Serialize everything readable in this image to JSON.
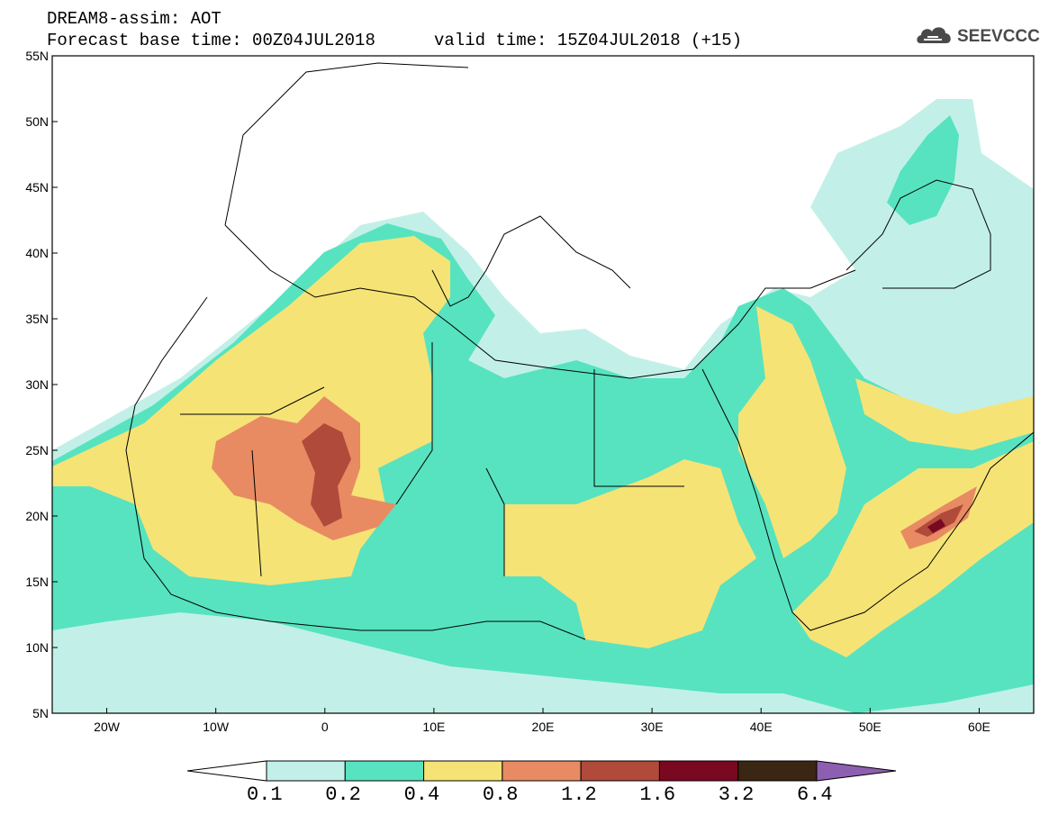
{
  "header": {
    "title": "DREAM8-assim: AOT",
    "base_time": "Forecast base time: 00Z04JUL2018",
    "valid_time": "valid time: 15Z04JUL2018 (+15)"
  },
  "logo": {
    "text": "SEEVCCC",
    "icon": "cloud-icon"
  },
  "map": {
    "lon_ticks": [
      "20W",
      "10W",
      "0",
      "10E",
      "20E",
      "30E",
      "40E",
      "50E",
      "60E"
    ],
    "lat_ticks": [
      "55N",
      "50N",
      "45N",
      "40N",
      "35N",
      "30N",
      "25N",
      "20N",
      "15N",
      "10N",
      "5N"
    ],
    "lon_range": [
      -25,
      65
    ],
    "lat_range": [
      5,
      55
    ]
  },
  "colorbar": {
    "labels": [
      "0.1",
      "0.2",
      "0.4",
      "0.8",
      "1.2",
      "1.6",
      "3.2",
      "6.4"
    ],
    "colors": [
      "#ffffff",
      "#c2f0e8",
      "#57e3bf",
      "#f6e376",
      "#e88b63",
      "#b04a3b",
      "#7a0820",
      "#3b2513",
      "#8d5fb0"
    ]
  }
}
